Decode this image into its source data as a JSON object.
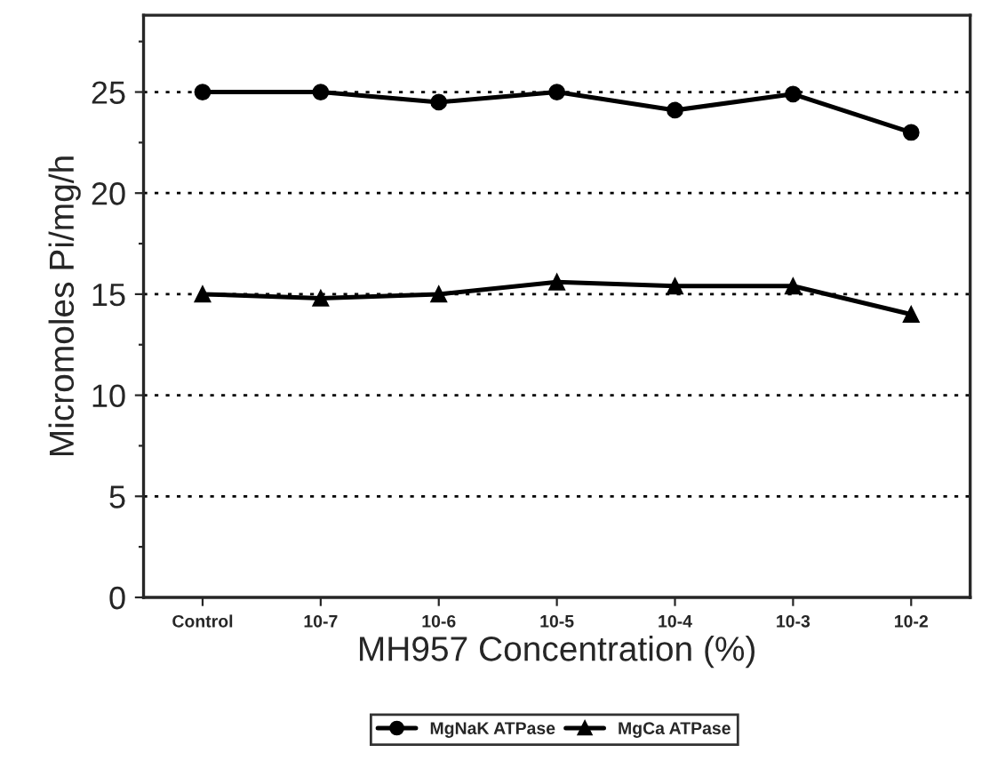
{
  "chart_data": {
    "type": "line",
    "xlabel": "MH957 Concentration (%)",
    "ylabel": "Micromoles Pi/mg/h",
    "categories": [
      "Control",
      "10-7",
      "10-6",
      "10-5",
      "10-4",
      "10-3",
      "10-2"
    ],
    "series": [
      {
        "name": "MgNaK ATPase",
        "color": "#000000",
        "marker": "circle",
        "values": [
          25.0,
          25.0,
          24.5,
          25.0,
          24.1,
          24.9,
          23.0
        ]
      },
      {
        "name": "MgCa ATPase",
        "color": "#000000",
        "marker": "triangle",
        "values": [
          15.0,
          14.8,
          15.0,
          15.6,
          15.4,
          15.4,
          14.0
        ]
      }
    ],
    "ylim": [
      0,
      28.8
    ],
    "yticks": [
      0,
      {
        "value": 2.5,
        "label": null
      },
      5,
      {
        "value": 7.5,
        "label": null
      },
      10,
      {
        "value": 12.5,
        "label": null
      },
      15,
      {
        "value": 17.5,
        "label": null
      },
      20,
      {
        "value": 22.5,
        "label": null
      },
      25,
      {
        "value": 27.5,
        "label": null
      }
    ],
    "grid": "y",
    "legend": "bottom",
    "line_style": "solid"
  }
}
